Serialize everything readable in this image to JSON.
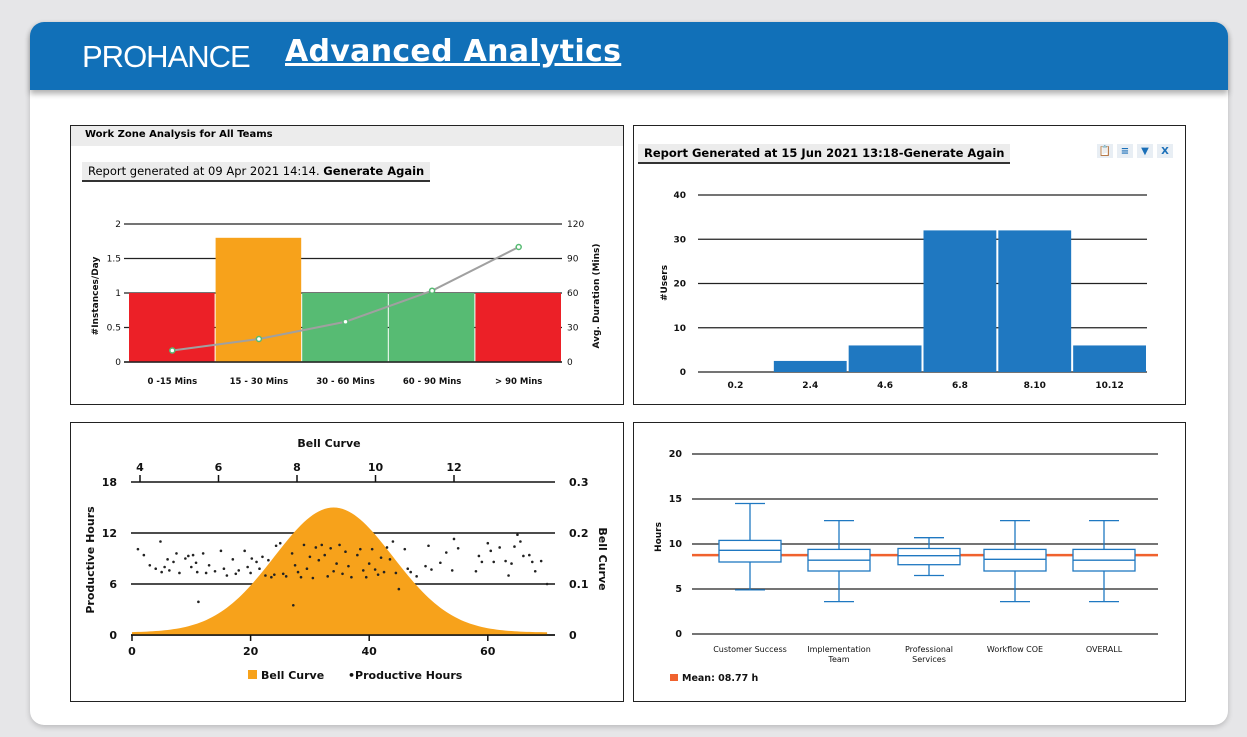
{
  "header": {
    "logo": "PROHANCE",
    "title": "Advanced Analytics",
    "color": "#1170b8"
  },
  "panel1": {
    "title": "Work Zone Analysis for All Teams",
    "report_text": "Report generated at 09 Apr 2021 14:14. ",
    "generate_label": "Generate Again"
  },
  "panel2": {
    "report_text": "Report Generated at 15 Jun 2021 13:18-Generate Again",
    "icons": [
      "clipboard-icon",
      "menu-icon",
      "filter-icon",
      "close-icon"
    ],
    "close_label": "X"
  },
  "chart_data": [
    {
      "type": "bar",
      "categories": [
        "0 -15 Mins",
        "15 - 30 Mins",
        "30 - 60 Mins",
        "60 - 90 Mins",
        "> 90 Mins"
      ],
      "values": [
        1,
        1.8,
        1,
        1,
        1
      ],
      "colors": [
        "#ec2027",
        "#f7a21b",
        "#57bb73",
        "#57bb73",
        "#ec2027"
      ],
      "ylabel": "#Instances/Day",
      "ylim": [
        0,
        2
      ],
      "yticks": [
        "0",
        "0.5",
        "1",
        "1.5",
        "2"
      ],
      "line": {
        "values": [
          10,
          20,
          35,
          62,
          100
        ],
        "color": "#a0a0a0",
        "marker_color": "#57bb73"
      },
      "y2label": "Avg. Duration (Mins)",
      "y2lim": [
        0,
        120
      ],
      "y2ticks": [
        "0",
        "30",
        "60",
        "90",
        "120"
      ]
    },
    {
      "type": "bar",
      "categories": [
        "0.2",
        "2.4",
        "4.6",
        "6.8",
        "8.10",
        "10.12"
      ],
      "values": [
        0,
        2.5,
        6,
        32,
        32,
        6
      ],
      "color": "#1f78c1",
      "ylabel": "#Users",
      "ylim": [
        0,
        40
      ],
      "yticks": [
        "0",
        "10",
        "20",
        "30",
        "40"
      ]
    },
    {
      "type": "scatter",
      "title": "Bell Curve",
      "xlim": [
        0,
        70
      ],
      "xticks": [
        "0",
        "20",
        "40",
        "60"
      ],
      "x2ticks": [
        "4",
        "6",
        "8",
        "10",
        "12"
      ],
      "x2lim": [
        4,
        12
      ],
      "ylabel": "Productive Hours",
      "ylim": [
        0,
        18
      ],
      "yticks": [
        "0",
        "6",
        "12",
        "18"
      ],
      "y2label": "Bell Curve",
      "y2lim": [
        0,
        0.3
      ],
      "y2ticks": [
        "0",
        "0.1",
        "0.2",
        "0.3"
      ],
      "bell": {
        "mean": 34,
        "sd": 10,
        "peak": 0.245,
        "color": "#f7a21b"
      },
      "legend": [
        "Bell Curve",
        "•Productive Hours"
      ],
      "points": [
        [
          1,
          10.1
        ],
        [
          2,
          9.4
        ],
        [
          3,
          8.2
        ],
        [
          4,
          7.8
        ],
        [
          4.8,
          11
        ],
        [
          5,
          7.4
        ],
        [
          5.5,
          8
        ],
        [
          6,
          8.9
        ],
        [
          6.3,
          7.6
        ],
        [
          7,
          8.6
        ],
        [
          7.5,
          9.6
        ],
        [
          8,
          7.3
        ],
        [
          9,
          9
        ],
        [
          9.5,
          9.3
        ],
        [
          10,
          8
        ],
        [
          10.3,
          9.4
        ],
        [
          10.8,
          8.5
        ],
        [
          11,
          7.4
        ],
        [
          11.2,
          3.9
        ],
        [
          12,
          9.6
        ],
        [
          12.5,
          7.3
        ],
        [
          13,
          8.2
        ],
        [
          14,
          7.5
        ],
        [
          15,
          9.9
        ],
        [
          15.5,
          7.8
        ],
        [
          16,
          7
        ],
        [
          17,
          8.9
        ],
        [
          17.5,
          7.2
        ],
        [
          18,
          7.6
        ],
        [
          19,
          9.9
        ],
        [
          19.5,
          8
        ],
        [
          20,
          7.3
        ],
        [
          20.2,
          9
        ],
        [
          21,
          8.6
        ],
        [
          21.5,
          7.8
        ],
        [
          22,
          9.2
        ],
        [
          22.5,
          7
        ],
        [
          23,
          8.8
        ],
        [
          23.5,
          6.8
        ],
        [
          24,
          7.1
        ],
        [
          24.3,
          10.5
        ],
        [
          25,
          10.8
        ],
        [
          25.5,
          7.2
        ],
        [
          26,
          6.9
        ],
        [
          27,
          9.6
        ],
        [
          27.2,
          3.5
        ],
        [
          27.5,
          8.2
        ],
        [
          28,
          7.4
        ],
        [
          28.5,
          6.8
        ],
        [
          29,
          10.6
        ],
        [
          29.5,
          7.8
        ],
        [
          30,
          9.2
        ],
        [
          30.5,
          6.7
        ],
        [
          31,
          10.3
        ],
        [
          31.5,
          8.8
        ],
        [
          32,
          10.6
        ],
        [
          32.5,
          9.4
        ],
        [
          33,
          6.9
        ],
        [
          33.5,
          10.2
        ],
        [
          34,
          7.5
        ],
        [
          34.5,
          8.4
        ],
        [
          35,
          10.6
        ],
        [
          35.5,
          7.2
        ],
        [
          36,
          9.8
        ],
        [
          36.5,
          8.1
        ],
        [
          37,
          6.8
        ],
        [
          38,
          9.4
        ],
        [
          38.5,
          10.1
        ],
        [
          39,
          7.6
        ],
        [
          39.5,
          6.8
        ],
        [
          40,
          8.4
        ],
        [
          40.5,
          10.1
        ],
        [
          41,
          7.7
        ],
        [
          41.5,
          7.1
        ],
        [
          42,
          9.1
        ],
        [
          42.5,
          7.4
        ],
        [
          43,
          10.3
        ],
        [
          43.5,
          8.9
        ],
        [
          44,
          11
        ],
        [
          44.5,
          7.3
        ],
        [
          45,
          5.4
        ],
        [
          46,
          10.1
        ],
        [
          46.5,
          7.8
        ],
        [
          47,
          7.4
        ],
        [
          48,
          6.9
        ],
        [
          49.5,
          8.1
        ],
        [
          50,
          10.5
        ],
        [
          50.5,
          7.7
        ],
        [
          52,
          8.5
        ],
        [
          53,
          9.7
        ],
        [
          54,
          7.6
        ],
        [
          54.3,
          11.3
        ],
        [
          55,
          10.2
        ],
        [
          58,
          7.5
        ],
        [
          58.5,
          9.3
        ],
        [
          59,
          8.6
        ],
        [
          60,
          10.8
        ],
        [
          60.5,
          9.9
        ],
        [
          61,
          8.6
        ],
        [
          62,
          10.3
        ],
        [
          63,
          8.7
        ],
        [
          63.5,
          7
        ],
        [
          64,
          8.4
        ],
        [
          64.5,
          10.4
        ],
        [
          65,
          11.8
        ],
        [
          65.5,
          11
        ],
        [
          66,
          9.3
        ],
        [
          67,
          9.4
        ],
        [
          67.5,
          8.6
        ],
        [
          68,
          7.5
        ],
        [
          69,
          8.7
        ],
        [
          70,
          6
        ]
      ]
    },
    {
      "type": "box",
      "categories": [
        "Customer Success",
        "Implementation Team",
        "Professional Services",
        "Workflow COE",
        "OVERALL"
      ],
      "ylabel": "Hours",
      "ylim": [
        0,
        20
      ],
      "yticks": [
        "0",
        "5",
        "10",
        "15",
        "20"
      ],
      "boxes": [
        [
          4.9,
          8,
          9.3,
          10.4,
          14.5
        ],
        [
          3.6,
          7,
          8.2,
          9.4,
          12.6
        ],
        [
          6.5,
          7.7,
          8.7,
          9.5,
          10.7
        ],
        [
          3.6,
          7,
          8.3,
          9.4,
          12.6
        ],
        [
          3.6,
          7,
          8.2,
          9.4,
          12.6
        ]
      ],
      "mean": 8.77,
      "mean_label": "Mean: 08.77 h",
      "box_color": "#1f78c1",
      "mean_color": "#f0622e"
    }
  ]
}
